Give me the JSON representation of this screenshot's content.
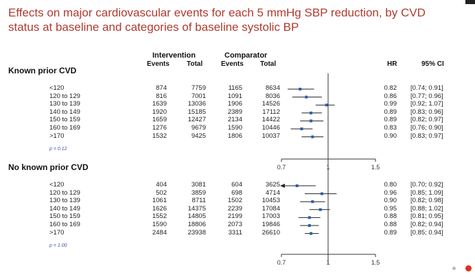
{
  "slide": {
    "title": "Effects on major cardiovascular events for each 5 mmHg SBP reduction, by CVD status at baseline and categories of baseline systolic BP"
  },
  "headers": {
    "intervention": "Intervention",
    "comparator": "Comparator",
    "events": "Events",
    "total": "Total",
    "hr": "HR",
    "ci": "95% CI"
  },
  "chart_data": {
    "type": "forest",
    "x_reference": 1,
    "xticks": [
      0.7,
      1,
      1.5
    ],
    "xtick_labels": [
      "0.7",
      "1",
      "1.5"
    ],
    "groups": [
      {
        "label": "Known prior CVD",
        "p_label": "p = 0.12",
        "rows": [
          {
            "bp": "<120",
            "int_events": "874",
            "int_total": "7759",
            "comp_events": "1165",
            "comp_total": "8634",
            "hr": 0.82,
            "lo": 0.74,
            "hi": 0.91,
            "hr_text": "0.82",
            "ci_text": "[0.74; 0.91]"
          },
          {
            "bp": "120 to 129",
            "int_events": "816",
            "int_total": "7001",
            "comp_events": "1091",
            "comp_total": "8036",
            "hr": 0.86,
            "lo": 0.77,
            "hi": 0.96,
            "hr_text": "0.86",
            "ci_text": "[0.77; 0.96]"
          },
          {
            "bp": "130 to 139",
            "int_events": "1639",
            "int_total": "13036",
            "comp_events": "1906",
            "comp_total": "14526",
            "hr": 0.99,
            "lo": 0.92,
            "hi": 1.07,
            "hr_text": "0.99",
            "ci_text": "[0.92; 1.07]"
          },
          {
            "bp": "140 to 149",
            "int_events": "1920",
            "int_total": "15185",
            "comp_events": "2389",
            "comp_total": "17112",
            "hr": 0.89,
            "lo": 0.83,
            "hi": 0.96,
            "hr_text": "0.89",
            "ci_text": "[0.83; 0.96]"
          },
          {
            "bp": "150 to 159",
            "int_events": "1659",
            "int_total": "12427",
            "comp_events": "2134",
            "comp_total": "14422",
            "hr": 0.89,
            "lo": 0.82,
            "hi": 0.97,
            "hr_text": "0.89",
            "ci_text": "[0.82; 0.97]"
          },
          {
            "bp": "160 to 169",
            "int_events": "1276",
            "int_total": "9679",
            "comp_events": "1590",
            "comp_total": "10446",
            "hr": 0.83,
            "lo": 0.76,
            "hi": 0.9,
            "hr_text": "0.83",
            "ci_text": "[0.76; 0.90]"
          },
          {
            "bp": ">170",
            "int_events": "1532",
            "int_total": "9425",
            "comp_events": "1806",
            "comp_total": "10037",
            "hr": 0.9,
            "lo": 0.83,
            "hi": 0.97,
            "hr_text": "0.90",
            "ci_text": "[0.83; 0.97]"
          }
        ]
      },
      {
        "label": "No known prior CVD",
        "p_label": "p = 1.00",
        "rows": [
          {
            "bp": "<120",
            "int_events": "404",
            "int_total": "3081",
            "comp_events": "604",
            "comp_total": "3625",
            "hr": 0.8,
            "lo": 0.7,
            "hi": 0.92,
            "hr_text": "0.80",
            "ci_text": "[0.70; 0.92]",
            "arrow_left": true
          },
          {
            "bp": "120 to 129",
            "int_events": "502",
            "int_total": "3859",
            "comp_events": "698",
            "comp_total": "4714",
            "hr": 0.96,
            "lo": 0.85,
            "hi": 1.09,
            "hr_text": "0.96",
            "ci_text": "[0.85; 1.09]"
          },
          {
            "bp": "130 to 139",
            "int_events": "1061",
            "int_total": "8711",
            "comp_events": "1502",
            "comp_total": "10453",
            "hr": 0.9,
            "lo": 0.82,
            "hi": 0.98,
            "hr_text": "0.90",
            "ci_text": "[0.82; 0.98]"
          },
          {
            "bp": "140 to 149",
            "int_events": "1626",
            "int_total": "14375",
            "comp_events": "2239",
            "comp_total": "17084",
            "hr": 0.95,
            "lo": 0.88,
            "hi": 1.02,
            "hr_text": "0.95",
            "ci_text": "[0.88; 1.02]"
          },
          {
            "bp": "150 to 159",
            "int_events": "1552",
            "int_total": "14805",
            "comp_events": "2199",
            "comp_total": "17003",
            "hr": 0.88,
            "lo": 0.81,
            "hi": 0.95,
            "hr_text": "0.88",
            "ci_text": "[0.81; 0.95]"
          },
          {
            "bp": "160 to 169",
            "int_events": "1590",
            "int_total": "18806",
            "comp_events": "2073",
            "comp_total": "19846",
            "hr": 0.88,
            "lo": 0.82,
            "hi": 0.94,
            "hr_text": "0.88",
            "ci_text": "[0.82; 0.94]"
          },
          {
            "bp": ">170",
            "int_events": "2484",
            "int_total": "23938",
            "comp_events": "3311",
            "comp_total": "26610",
            "hr": 0.89,
            "lo": 0.85,
            "hi": 0.94,
            "hr_text": "0.89",
            "ci_text": "[0.85; 0.94]"
          }
        ]
      }
    ]
  },
  "colors": {
    "title": "#b03a2e",
    "point": "#2a5db0",
    "line": "#222222"
  },
  "nav": {
    "dots": [
      "grey",
      "red"
    ]
  }
}
